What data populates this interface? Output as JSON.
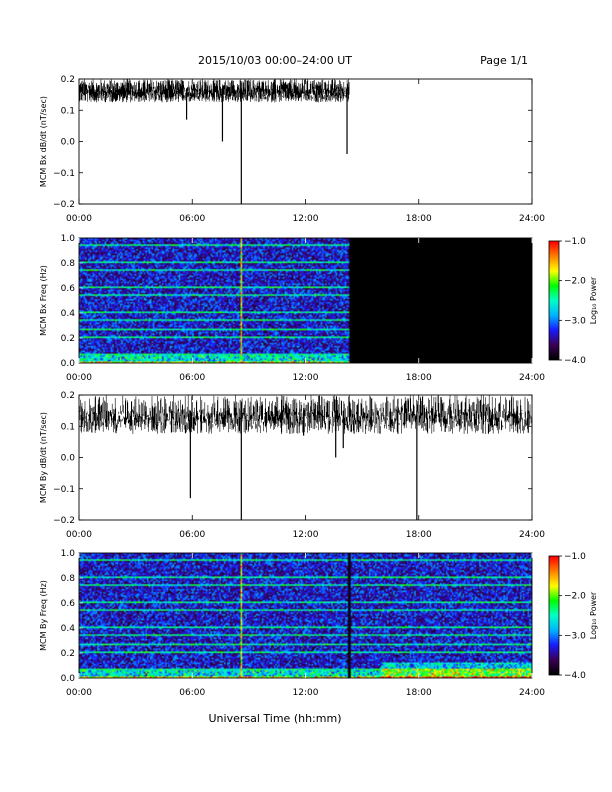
{
  "header": {
    "date_range": "2015/10/03   00:00–24:00 UT",
    "page": "Page 1/1"
  },
  "footer": {
    "xlabel": "Universal Time (hh:mm)"
  },
  "colors": {
    "trace": "#000000",
    "nodata": "#000000",
    "colormap": [
      "#000000",
      "#3b0057",
      "#1a1aff",
      "#00b4ff",
      "#00ffc8",
      "#00ff00",
      "#ffff00",
      "#ff8000",
      "#ff0000"
    ]
  },
  "chart_data": [
    {
      "id": "bx-ts",
      "type": "line",
      "ylabel": "MCM Bx dB/dt (nT/sec)",
      "x_tick_labels": [
        "00:00",
        "06:00",
        "12:00",
        "18:00",
        "24:00"
      ],
      "xlim": [
        0,
        24
      ],
      "ylim": [
        -0.2,
        0.2
      ],
      "y_ticks": [
        -0.2,
        -0.1,
        0.0,
        0.1,
        0.2
      ],
      "y_tick_labels": [
        "−0.2",
        "−0.1",
        "0.0",
        "0.1",
        "0.2"
      ],
      "data_end_hour": 14.3,
      "baseline": 0.17,
      "noise": 0.03,
      "spikes": [
        {
          "x": 8.6,
          "y": -0.2
        },
        {
          "x": 7.6,
          "y": 0.0
        },
        {
          "x": 14.2,
          "y": -0.04
        },
        {
          "x": 5.7,
          "y": 0.07
        }
      ]
    },
    {
      "id": "bx-spec",
      "type": "heatmap",
      "ylabel": "MCM Bx Freq (Hz)",
      "colorbar_label": "Log₁₀ Power",
      "x_tick_labels": [
        "00:00",
        "06:00",
        "12:00",
        "18:00",
        "24:00"
      ],
      "xlim": [
        0,
        24
      ],
      "ylim": [
        0,
        1.0
      ],
      "y_tick_labels": [
        "0.0",
        "0.2",
        "0.4",
        "0.6",
        "0.8",
        "1.0"
      ],
      "zlim": [
        -4.0,
        -1.0
      ],
      "z_tick_labels": [
        "−4.0",
        "−3.0",
        "−2.0",
        "−1.0"
      ],
      "data_end_hour": 14.3,
      "event_hours": [
        8.6
      ]
    },
    {
      "id": "by-ts",
      "type": "line",
      "ylabel": "MCM By dB/dt (nT/sec)",
      "x_tick_labels": [
        "00:00",
        "06:00",
        "12:00",
        "18:00",
        "24:00"
      ],
      "xlim": [
        0,
        24
      ],
      "ylim": [
        -0.2,
        0.2
      ],
      "y_ticks": [
        -0.2,
        -0.1,
        0.0,
        0.1,
        0.2
      ],
      "y_tick_labels": [
        "−0.2",
        "−0.1",
        "0.0",
        "0.1",
        "0.2"
      ],
      "data_end_hour": 24,
      "baseline": 0.15,
      "noise": 0.05,
      "spikes": [
        {
          "x": 5.9,
          "y": -0.13
        },
        {
          "x": 8.6,
          "y": -0.2
        },
        {
          "x": 17.9,
          "y": -0.2
        },
        {
          "x": 13.6,
          "y": 0.0
        },
        {
          "x": 14.0,
          "y": 0.03
        },
        {
          "x": 11.9,
          "y": 0.07
        },
        {
          "x": 4.9,
          "y": 0.08
        }
      ]
    },
    {
      "id": "by-spec",
      "type": "heatmap",
      "ylabel": "MCM By Freq (Hz)",
      "colorbar_label": "Log₁₀ Power",
      "x_tick_labels": [
        "00:00",
        "06:00",
        "12:00",
        "18:00",
        "24:00"
      ],
      "xlim": [
        0,
        24
      ],
      "ylim": [
        0,
        1.0
      ],
      "y_tick_labels": [
        "0.0",
        "0.2",
        "0.4",
        "0.6",
        "0.8",
        "1.0"
      ],
      "zlim": [
        -4.0,
        -1.0
      ],
      "z_tick_labels": [
        "−4.0",
        "−3.0",
        "−2.0",
        "−1.0"
      ],
      "data_end_hour": 24,
      "event_hours": [
        8.6
      ],
      "gap_hours": [
        14.3
      ]
    }
  ]
}
